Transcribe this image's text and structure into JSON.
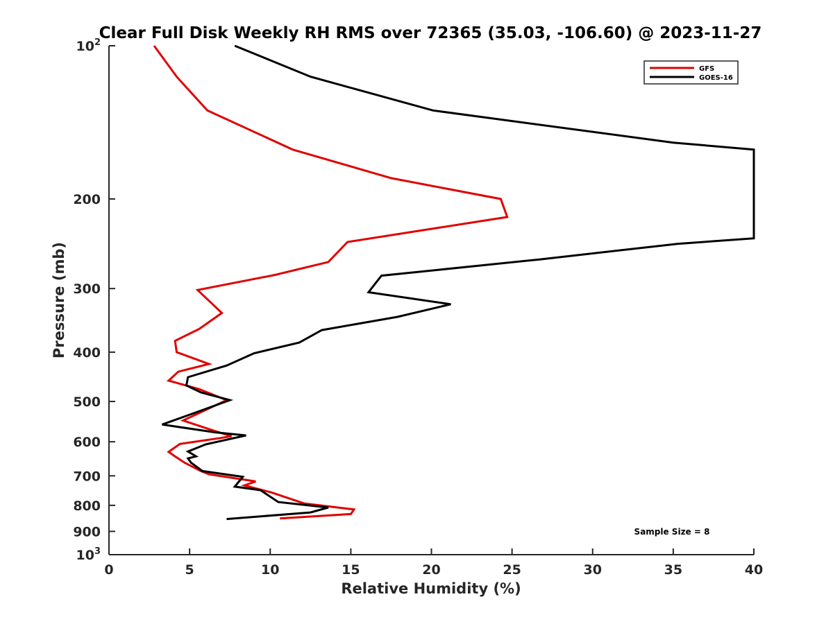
{
  "chart_data": {
    "type": "line",
    "title": "Clear Full Disk Weekly RH RMS over 72365 (35.03, -106.60) @ 2023-11-27",
    "xlabel": "Relative Humidity (%)",
    "ylabel": "Pressure (mb)",
    "xlim": [
      0,
      40
    ],
    "ylim": [
      100,
      1000
    ],
    "y_scale": "log",
    "y_reversed": true,
    "grid": false,
    "legend_position": "top-right",
    "x_ticks": [
      "0",
      "5",
      "10",
      "15",
      "20",
      "25",
      "30",
      "35",
      "40"
    ],
    "x_tick_values": [
      0,
      5,
      10,
      15,
      20,
      25,
      30,
      35,
      40
    ],
    "y_ticks": [
      {
        "value": 100,
        "base": "10",
        "exp": "2"
      },
      {
        "value": 200,
        "label": "200"
      },
      {
        "value": 300,
        "label": "300"
      },
      {
        "value": 400,
        "label": "400"
      },
      {
        "value": 500,
        "label": "500"
      },
      {
        "value": 600,
        "label": "600"
      },
      {
        "value": 700,
        "label": "700"
      },
      {
        "value": 800,
        "label": "800"
      },
      {
        "value": 900,
        "label": "900"
      },
      {
        "value": 1000,
        "base": "10",
        "exp": "3"
      }
    ],
    "annotation": "Sample Size = 8",
    "series": [
      {
        "name": "GFS",
        "color": "#e00000",
        "points": [
          [
            2.8,
            100
          ],
          [
            4.2,
            115
          ],
          [
            6.1,
            134
          ],
          [
            11.4,
            160
          ],
          [
            17.5,
            182
          ],
          [
            24.3,
            200
          ],
          [
            24.7,
            217
          ],
          [
            14.8,
            243
          ],
          [
            13.6,
            266
          ],
          [
            10.3,
            282
          ],
          [
            5.5,
            302
          ],
          [
            7.0,
            335
          ],
          [
            5.6,
            360
          ],
          [
            4.1,
            380
          ],
          [
            4.2,
            400
          ],
          [
            6.2,
            422
          ],
          [
            4.3,
            437
          ],
          [
            3.7,
            455
          ],
          [
            5.6,
            473
          ],
          [
            7.3,
            497
          ],
          [
            4.6,
            545
          ],
          [
            6.6,
            572
          ],
          [
            7.6,
            585
          ],
          [
            6.9,
            590
          ],
          [
            4.4,
            606
          ],
          [
            3.7,
            628
          ],
          [
            4.1,
            641
          ],
          [
            4.7,
            660
          ],
          [
            5.7,
            685
          ],
          [
            6.2,
            695
          ],
          [
            9.1,
            718
          ],
          [
            8.4,
            731
          ],
          [
            10.1,
            755
          ],
          [
            12.1,
            793
          ],
          [
            15.2,
            815
          ],
          [
            15.0,
            832
          ],
          [
            10.6,
            849
          ]
        ]
      },
      {
        "name": "GOES-16",
        "color": "#000000",
        "points": [
          [
            7.8,
            100
          ],
          [
            12.5,
            115
          ],
          [
            20.1,
            134
          ],
          [
            35.0,
            155
          ],
          [
            40.0,
            160
          ],
          [
            40.0,
            239
          ],
          [
            35.3,
            245
          ],
          [
            26.7,
            263
          ],
          [
            16.9,
            283
          ],
          [
            16.1,
            305
          ],
          [
            21.2,
            322
          ],
          [
            17.9,
            341
          ],
          [
            13.2,
            362
          ],
          [
            11.8,
            383
          ],
          [
            9.0,
            402
          ],
          [
            7.3,
            425
          ],
          [
            4.9,
            448
          ],
          [
            4.8,
            465
          ],
          [
            5.7,
            480
          ],
          [
            7.5,
            497
          ],
          [
            4.7,
            535
          ],
          [
            3.3,
            555
          ],
          [
            6.6,
            575
          ],
          [
            8.5,
            583
          ],
          [
            6.0,
            607
          ],
          [
            4.9,
            627
          ],
          [
            5.4,
            641
          ],
          [
            4.9,
            647
          ],
          [
            5.1,
            660
          ],
          [
            5.8,
            685
          ],
          [
            8.3,
            703
          ],
          [
            7.8,
            735
          ],
          [
            9.4,
            747
          ],
          [
            10.5,
            788
          ],
          [
            13.6,
            808
          ],
          [
            12.5,
            826
          ],
          [
            7.3,
            851
          ]
        ]
      }
    ]
  }
}
